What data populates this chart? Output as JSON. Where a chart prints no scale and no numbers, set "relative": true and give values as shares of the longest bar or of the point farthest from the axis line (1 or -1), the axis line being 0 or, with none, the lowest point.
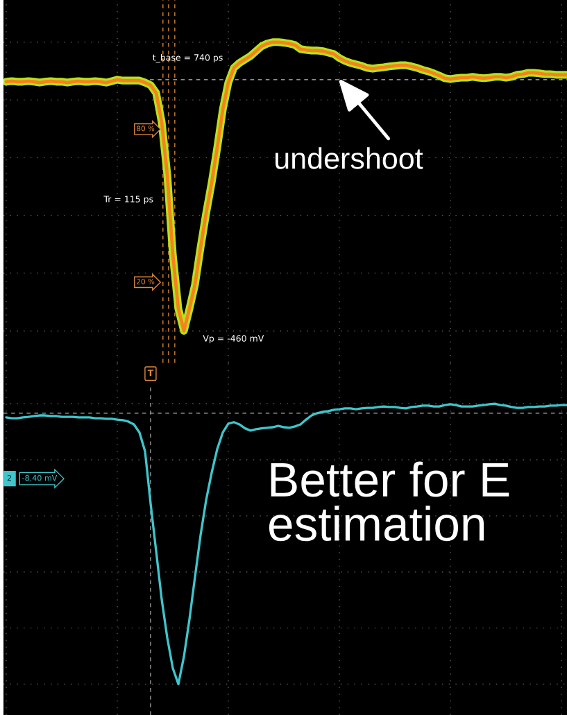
{
  "chart_data": [
    {
      "type": "line",
      "relative": true,
      "grid": true,
      "tick_labels": false,
      "categories": [
        null,
        null,
        null,
        null,
        null,
        null,
        null,
        null,
        null,
        null,
        null,
        null,
        null,
        null,
        null,
        null,
        null,
        null,
        null,
        null,
        null,
        null,
        null,
        null,
        null,
        null,
        null,
        null,
        null,
        null,
        null,
        null,
        null,
        null,
        null,
        null,
        null,
        null,
        null,
        null,
        null,
        null,
        null,
        null,
        null,
        null,
        null,
        null,
        null,
        null,
        null,
        null,
        null,
        null,
        null,
        null,
        null,
        null,
        null,
        null,
        null,
        null,
        null,
        null,
        null,
        null,
        null,
        null,
        null,
        null,
        null,
        null,
        null,
        null,
        null,
        null,
        null,
        null,
        null,
        null,
        null,
        null,
        null,
        null,
        null,
        null,
        null,
        null,
        null,
        null,
        null,
        null,
        null,
        null,
        null,
        null,
        null,
        null,
        null,
        null,
        null,
        null
      ],
      "series": [
        {
          "color": "#f7811e",
          "values": [
            0.863,
            0.865,
            0.863,
            0.863,
            0.865,
            0.863,
            0.86,
            0.863,
            0.865,
            0.863,
            0.863,
            0.86,
            0.863,
            0.865,
            0.863,
            0.863,
            0.865,
            0.863,
            0.86,
            0.865,
            0.87,
            0.867,
            0.867,
            0.867,
            0.867,
            0.86,
            0.851,
            0.824,
            0.723,
            0.542,
            0.265,
            0.077,
            0,
            0.077,
            0.161,
            0.289,
            0.407,
            0.513,
            0.634,
            0.766,
            0.86,
            0.911,
            0.928,
            0.94,
            0.952,
            0.969,
            0.986,
            0.995,
            1,
            1,
            0.998,
            0.995,
            0.99,
            0.976,
            0.973,
            0.971,
            0.971,
            0.969,
            0.964,
            0.959,
            0.945,
            0.935,
            0.928,
            0.923,
            0.918,
            0.911,
            0.908,
            0.911,
            0.913,
            0.916,
            0.918,
            0.92,
            0.92,
            0.916,
            0.911,
            0.904,
            0.899,
            0.892,
            0.884,
            0.875,
            0.872,
            0.875,
            0.877,
            0.877,
            0.88,
            0.877,
            0.875,
            0.877,
            0.88,
            0.88,
            0.877,
            0.88,
            0.887,
            0.889,
            0.894,
            0.894,
            0.892,
            0.889,
            0.889,
            0.887,
            0.887,
            0.887
          ]
        }
      ],
      "ref_lines": [
        {
          "axis": "y",
          "value": 0.87,
          "color": "#bdbdbd",
          "line_style": "dashed"
        }
      ],
      "annotations": [
        "t_base = 740 ps",
        "80 %",
        "Tr = 115 ps",
        "20 %",
        "Vp = -460 mV",
        "undershoot"
      ]
    },
    {
      "type": "line",
      "relative": true,
      "grid": true,
      "tick_labels": false,
      "categories": [
        null,
        null,
        null,
        null,
        null,
        null,
        null,
        null,
        null,
        null,
        null,
        null,
        null,
        null,
        null,
        null,
        null,
        null,
        null,
        null,
        null,
        null,
        null,
        null,
        null,
        null,
        null,
        null,
        null,
        null,
        null,
        null,
        null,
        null,
        null,
        null,
        null,
        null,
        null,
        null,
        null,
        null,
        null,
        null,
        null,
        null,
        null,
        null,
        null,
        null,
        null,
        null,
        null,
        null,
        null,
        null,
        null,
        null,
        null,
        null,
        null,
        null,
        null,
        null,
        null,
        null,
        null,
        null,
        null,
        null,
        null,
        null,
        null,
        null,
        null,
        null,
        null,
        null,
        null,
        null,
        null,
        null,
        null,
        null,
        null,
        null,
        null,
        null,
        null,
        null,
        null,
        null,
        null,
        null,
        null,
        null,
        null,
        null,
        null,
        null,
        null,
        null
      ],
      "series": [
        {
          "color": "#3ec6cc",
          "values": [
            0.951,
            0.948,
            0.948,
            0.951,
            0.953,
            0.956,
            0.958,
            0.958,
            0.956,
            0.956,
            0.953,
            0.953,
            0.953,
            0.951,
            0.951,
            0.951,
            0.948,
            0.948,
            0.946,
            0.946,
            0.943,
            0.941,
            0.936,
            0.926,
            0.897,
            0.83,
            0.644,
            0.474,
            0.302,
            0.165,
            0.057,
            0,
            0.098,
            0.231,
            0.383,
            0.531,
            0.656,
            0.754,
            0.838,
            0.897,
            0.929,
            0.934,
            0.926,
            0.912,
            0.904,
            0.909,
            0.912,
            0.914,
            0.916,
            0.921,
            0.916,
            0.914,
            0.919,
            0.926,
            0.943,
            0.958,
            0.966,
            0.971,
            0.973,
            0.978,
            0.98,
            0.983,
            0.983,
            0.98,
            0.983,
            0.985,
            0.985,
            0.988,
            0.99,
            0.988,
            0.988,
            0.985,
            0.983,
            0.988,
            0.99,
            0.993,
            0.993,
            0.99,
            0.99,
            0.995,
            0.998,
            0.995,
            0.99,
            0.99,
            0.99,
            0.993,
            0.995,
            0.998,
            1,
            0.995,
            0.993,
            0.988,
            0.985,
            0.985,
            0.988,
            0.988,
            0.99,
            0.99,
            0.993,
            0.993,
            0.995,
            0.995
          ]
        }
      ],
      "ref_lines": [
        {
          "axis": "y",
          "value": 0.966,
          "color": "#9a9a9a",
          "line_style": "dashed"
        }
      ],
      "annotations": [
        "T",
        "2",
        "-8.40 mV",
        "Better for E\nestimation"
      ]
    }
  ]
}
